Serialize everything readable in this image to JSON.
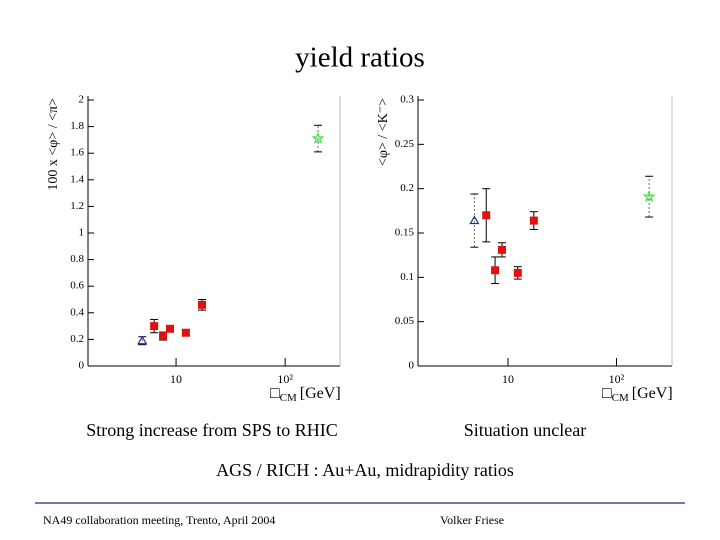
{
  "title": "yield ratios",
  "captions": [
    "Strong increase from SPS to RHIC",
    "Situation unclear"
  ],
  "note": "AGS / RICH : Au+Au, midrapidity ratios",
  "footer": {
    "left": "NA49 collaboration meeting, Trento, April 2004",
    "right": "Volker Friese"
  },
  "chart_data": [
    {
      "type": "scatter",
      "ylabel": "100 x <φ> / <π>",
      "xlabel": {
        "symbol": "□",
        "sub": "CM",
        "unit": "[GeV]"
      },
      "log_x": true,
      "xlim": [
        1.56,
        318
      ],
      "xticks": [
        10,
        {
          "value": 100,
          "label": "10²"
        }
      ],
      "ylim": [
        0,
        2
      ],
      "yticks": [
        0,
        0.2,
        0.4,
        0.6,
        0.8,
        1,
        1.2,
        1.4,
        1.6,
        1.8,
        2
      ],
      "series": [
        {
          "marker": "triangle",
          "color": "#1a2f9a",
          "x": [
            4.9
          ],
          "values": [
            0.19
          ],
          "errors": [
            0.03
          ]
        },
        {
          "marker": "square",
          "color": "#e01010",
          "x": [
            6.3,
            7.6,
            8.8,
            12.3,
            17.3
          ],
          "values": [
            0.3,
            0.225,
            0.28,
            0.25,
            0.46
          ],
          "errors": [
            0.05,
            0.03,
            0.02,
            0.02,
            0.04
          ]
        },
        {
          "marker": "star",
          "color": "#40e040",
          "x": [
            200
          ],
          "values": [
            1.71
          ],
          "errors": [
            0.1
          ]
        }
      ]
    },
    {
      "type": "scatter",
      "ylabel": "<φ> / <K⁻>",
      "xlabel": {
        "symbol": "□",
        "sub": "CM",
        "unit": "[GeV]"
      },
      "log_x": true,
      "xlim": [
        1.48,
        325
      ],
      "xticks": [
        10,
        {
          "value": 100,
          "label": "10²"
        }
      ],
      "ylim": [
        0,
        0.3
      ],
      "yticks": [
        0,
        0.05,
        0.1,
        0.15,
        0.2,
        0.25,
        0.3
      ],
      "series": [
        {
          "marker": "triangle",
          "color": "#1a2f9a",
          "x": [
            4.9
          ],
          "values": [
            0.164
          ],
          "errors": [
            0.03
          ]
        },
        {
          "marker": "square",
          "color": "#e01010",
          "x": [
            6.3,
            7.6,
            8.8,
            12.3,
            17.3
          ],
          "values": [
            0.17,
            0.108,
            0.131,
            0.105,
            0.164
          ],
          "errors": [
            0.03,
            0.015,
            0.008,
            0.007,
            0.01
          ]
        },
        {
          "marker": "star",
          "color": "#40e040",
          "x": [
            200
          ],
          "values": [
            0.191
          ],
          "errors": [
            0.023
          ]
        }
      ]
    }
  ]
}
